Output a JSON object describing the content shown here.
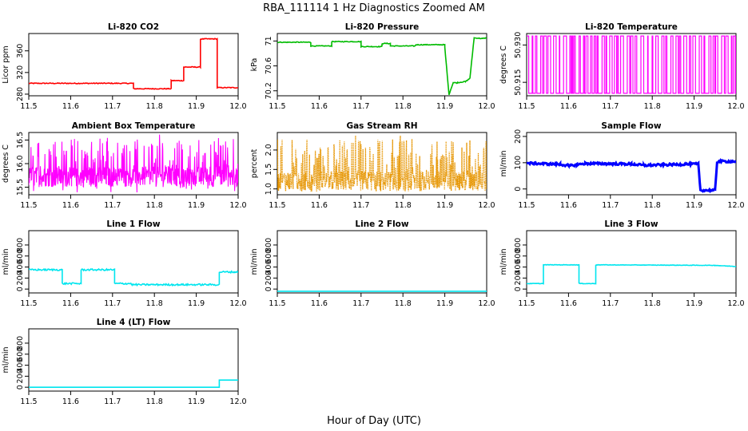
{
  "figure": {
    "title": "RBA_111114  1 Hz Diagnostics Zoomed AM",
    "xlabel": "Hour of Day (UTC)"
  },
  "chart_data": [
    {
      "type": "line",
      "title": "Li-820 CO2",
      "ylabel": "Licor ppm",
      "color": "#ff0000",
      "xlim": [
        11.5,
        12.0
      ],
      "ylim": [
        277,
        392
      ],
      "xticks": [
        "11.5",
        "11.6",
        "11.7",
        "11.8",
        "11.9",
        "12.0"
      ],
      "yticks": [
        280,
        320,
        360
      ],
      "series": [
        {
          "name": "CO2",
          "x": [
            11.5,
            11.75,
            11.75,
            11.84,
            11.84,
            11.87,
            11.87,
            11.91,
            11.91,
            11.95,
            11.95,
            12.0
          ],
          "y": [
            300,
            300,
            290,
            290,
            305,
            305,
            330,
            330,
            382,
            382,
            292,
            292
          ]
        }
      ],
      "noise": 0.8
    },
    {
      "type": "line",
      "title": "Li-820 Pressure",
      "ylabel": "kPa",
      "color": "#00bb00",
      "xlim": [
        11.5,
        12.0
      ],
      "ylim": [
        70.12,
        71.12
      ],
      "xticks": [
        "11.5",
        "11.6",
        "11.7",
        "11.8",
        "11.9",
        "12.0"
      ],
      "yticks": [
        70.2,
        70.6,
        71.0
      ],
      "series": [
        {
          "name": "Pressure",
          "x": [
            11.5,
            11.58,
            11.58,
            11.63,
            11.63,
            11.7,
            11.7,
            11.75,
            11.75,
            11.77,
            11.77,
            11.83,
            11.83,
            11.9,
            11.9,
            11.91,
            11.92,
            11.93,
            11.95,
            11.96,
            11.97,
            11.99,
            12.0
          ],
          "y": [
            70.98,
            70.98,
            70.92,
            70.92,
            70.99,
            70.99,
            70.91,
            70.91,
            70.96,
            70.96,
            70.92,
            70.92,
            70.94,
            70.94,
            70.9,
            70.14,
            70.33,
            70.33,
            70.35,
            70.4,
            71.05,
            71.04,
            71.05
          ]
        }
      ],
      "noise": 0.006
    },
    {
      "type": "line",
      "title": "Li-820 Temperature",
      "ylabel": "degrees C",
      "color": "#ff00ff",
      "xlim": [
        11.5,
        12.0
      ],
      "ylim": [
        50.9096,
        50.9346
      ],
      "xticks": [
        "11.5",
        "11.6",
        "11.7",
        "11.8",
        "11.9",
        "12.0"
      ],
      "yticks": [
        "50.915",
        "50.930"
      ],
      "series": [
        {
          "name": "Temperature",
          "levels": [
            50.9106,
            50.9336
          ],
          "note": "toggles between two quantized levels"
        }
      ]
    },
    {
      "type": "line",
      "title": "Ambient Box Temperature",
      "ylabel": "degrees C",
      "color": "#ff00ff",
      "xlim": [
        11.5,
        12.0
      ],
      "ylim": [
        15.34,
        16.66
      ],
      "xticks": [
        "11.5",
        "11.6",
        "11.7",
        "11.8",
        "11.9",
        "12.0"
      ],
      "yticks": [
        "15.5",
        "16.0",
        "16.5"
      ],
      "series": [
        {
          "name": "Box Temp",
          "baseline": 15.72,
          "min": 15.38,
          "max": 16.62,
          "note": "dense noise around baseline"
        }
      ]
    },
    {
      "type": "line",
      "title": "Gas Stream RH",
      "ylabel": "percent",
      "color": "#e69500",
      "xlim": [
        11.5,
        12.0
      ],
      "ylim": [
        0.85,
        2.45
      ],
      "xticks": [
        "11.5",
        "11.6",
        "11.7",
        "11.8",
        "11.9",
        "12.0"
      ],
      "yticks": [
        "1.0",
        "1.5",
        "2.0"
      ],
      "series": [
        {
          "name": "RH",
          "baseline": 1.2,
          "min": 0.9,
          "max": 2.4,
          "note": "dense dotted noise"
        }
      ]
    },
    {
      "type": "line",
      "title": "Sample Flow",
      "ylabel": "ml/min",
      "color": "#0000ff",
      "xlim": [
        11.5,
        12.0
      ],
      "ylim": [
        -22,
        215
      ],
      "xticks": [
        "11.5",
        "11.6",
        "11.7",
        "11.8",
        "11.9",
        "12.0"
      ],
      "yticks": [
        0,
        100,
        200
      ],
      "series": [
        {
          "name": "Sample Flow",
          "x": [
            11.5,
            11.58,
            11.6,
            11.62,
            11.64,
            11.75,
            11.78,
            11.88,
            11.91,
            11.915,
            11.95,
            11.955,
            12.0
          ],
          "y": [
            98,
            94,
            88,
            92,
            97,
            95,
            90,
            94,
            95,
            -5,
            -5,
            105,
            105
          ]
        }
      ],
      "noise": 4
    },
    {
      "type": "line",
      "title": "Line 1 Flow",
      "ylabel": "ml/min",
      "color": "#00e5ee",
      "xlim": [
        11.5,
        12.0
      ],
      "ylim": [
        -70,
        1060
      ],
      "xticks": [
        "11.5",
        "11.6",
        "11.7",
        "11.8",
        "11.9",
        "12.0"
      ],
      "yticks": [
        0,
        200,
        400,
        600,
        800
      ],
      "series": [
        {
          "name": "Line 1",
          "x": [
            11.5,
            11.58,
            11.58,
            11.625,
            11.625,
            11.705,
            11.705,
            11.745,
            11.745,
            11.955,
            11.955,
            12.0
          ],
          "y": [
            350,
            350,
            100,
            100,
            350,
            350,
            100,
            100,
            80,
            80,
            310,
            310
          ]
        }
      ],
      "noise": 15
    },
    {
      "type": "line",
      "title": "Line 2 Flow",
      "ylabel": "ml/min",
      "color": "#00e5ee",
      "xlim": [
        11.5,
        12.0
      ],
      "ylim": [
        -70,
        1060
      ],
      "xticks": [
        "11.5",
        "11.6",
        "11.7",
        "11.8",
        "11.9",
        "12.0"
      ],
      "yticks": [
        0,
        200,
        400,
        600,
        800
      ],
      "series": [
        {
          "name": "Line 2",
          "x": [
            11.5,
            12.0
          ],
          "y": [
            -40,
            -40
          ]
        }
      ],
      "noise": 0
    },
    {
      "type": "line",
      "title": "Line 3 Flow",
      "ylabel": "ml/min",
      "color": "#00e5ee",
      "xlim": [
        11.5,
        12.0
      ],
      "ylim": [
        -70,
        1060
      ],
      "xticks": [
        "11.5",
        "11.6",
        "11.7",
        "11.8",
        "11.9",
        "12.0"
      ],
      "yticks": [
        0,
        200,
        400,
        600,
        800
      ],
      "series": [
        {
          "name": "Line 3",
          "x": [
            11.5,
            11.54,
            11.54,
            11.625,
            11.625,
            11.665,
            11.665,
            11.95,
            12.0
          ],
          "y": [
            100,
            100,
            440,
            440,
            100,
            100,
            440,
            430,
            410
          ]
        }
      ],
      "noise": 4
    },
    {
      "type": "line",
      "title": "Line 4 (LT) Flow",
      "ylabel": "ml/min",
      "color": "#00e5ee",
      "xlim": [
        11.5,
        12.0
      ],
      "ylim": [
        -70,
        1060
      ],
      "xticks": [
        "11.5",
        "11.6",
        "11.7",
        "11.8",
        "11.9",
        "12.0"
      ],
      "yticks": [
        0,
        200,
        400,
        600,
        800
      ],
      "series": [
        {
          "name": "Line 4",
          "x": [
            11.5,
            11.955,
            11.955,
            12.0
          ],
          "y": [
            0,
            0,
            130,
            130
          ]
        }
      ],
      "noise": 0
    }
  ]
}
